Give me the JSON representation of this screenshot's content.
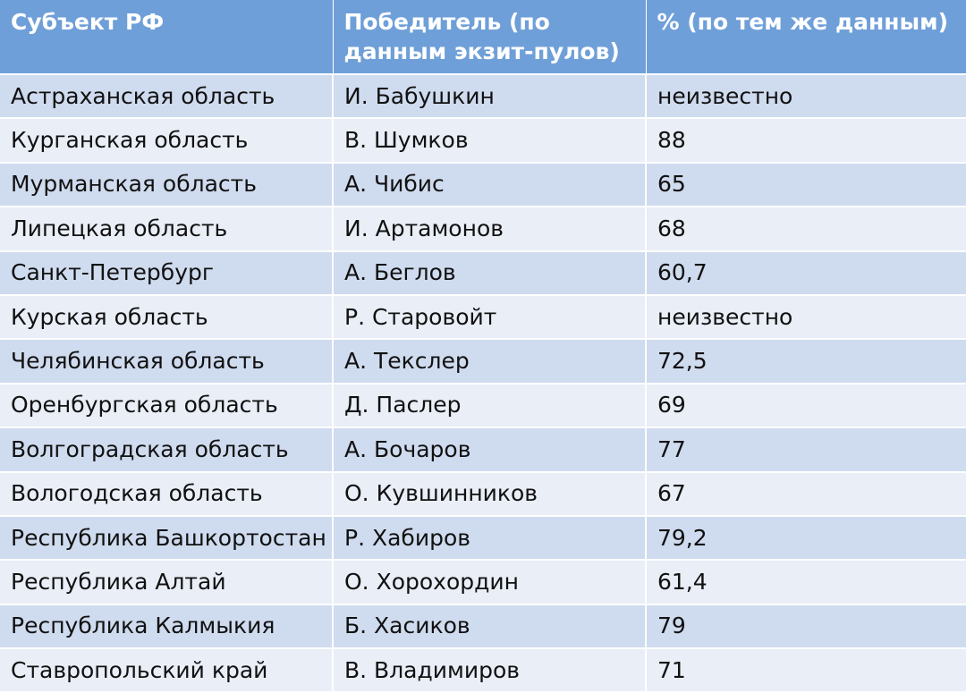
{
  "table": {
    "headers": [
      "Субъект РФ",
      "Победитель (по данным экзит-пулов)",
      "% (по тем же данным)"
    ],
    "rows": [
      [
        "Астраханская область",
        "И. Бабушкин",
        "неизвестно"
      ],
      [
        "Курганская область",
        "В. Шумков",
        "88"
      ],
      [
        "Мурманская область",
        "А. Чибис",
        "65"
      ],
      [
        "Липецкая область",
        "И. Артамонов",
        "68"
      ],
      [
        "Санкт-Петербург",
        "А. Беглов",
        "60,7"
      ],
      [
        "Курская область",
        "Р. Старовойт",
        "неизвестно"
      ],
      [
        "Челябинская область",
        "А. Текслер",
        "72,5"
      ],
      [
        "Оренбургская область",
        "Д. Паслер",
        "69"
      ],
      [
        "Волгоградская область",
        "А. Бочаров",
        "77"
      ],
      [
        "Вологодская область",
        "О. Кувшинников",
        "67"
      ],
      [
        "Республика Башкортостан",
        "Р. Хабиров",
        "79,2"
      ],
      [
        "Республика Алтай",
        "О. Хорохордин",
        "61,4"
      ],
      [
        "Республика Калмыкия",
        "Б. Хасиков",
        "79"
      ],
      [
        "Ставропольский край",
        "В. Владимиров",
        "71"
      ]
    ]
  },
  "colors": {
    "header_bg": "#6f9fd8",
    "row_odd": "#cfdbee",
    "row_even": "#e9eef7"
  }
}
